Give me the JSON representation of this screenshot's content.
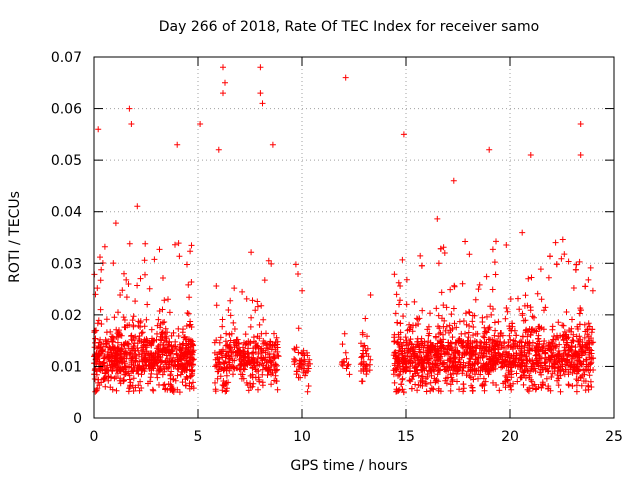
{
  "chart_data": {
    "type": "scatter",
    "title": "Day 266 of 2018, Rate Of TEC Index for receiver samo",
    "xlabel": "GPS time / hours",
    "ylabel": "ROTI / TECUs",
    "xlim": [
      0,
      25
    ],
    "ylim": [
      0,
      0.07
    ],
    "xticks": [
      0,
      5,
      10,
      15,
      20,
      25
    ],
    "xtick_labels": [
      "0",
      "5",
      "10",
      "15",
      "20",
      "25"
    ],
    "yticks": [
      0,
      0.01,
      0.02,
      0.03,
      0.04,
      0.05,
      0.06,
      0.07
    ],
    "ytick_labels": [
      "0",
      "0.01",
      "0.02",
      "0.03",
      "0.04",
      "0.05",
      "0.06",
      "0.07"
    ],
    "grid": true,
    "marker": "+",
    "color": "#ff0000",
    "activity_segments": [
      {
        "start": 0.0,
        "end": 4.8,
        "density": 1.0,
        "spread": 0.012
      },
      {
        "start": 5.8,
        "end": 8.9,
        "density": 0.7,
        "spread": 0.011
      },
      {
        "start": 9.6,
        "end": 10.4,
        "density": 0.4,
        "spread": 0.006
      },
      {
        "start": 11.9,
        "end": 12.3,
        "density": 0.2,
        "spread": 0.006
      },
      {
        "start": 12.8,
        "end": 13.3,
        "density": 0.45,
        "spread": 0.009
      },
      {
        "start": 14.4,
        "end": 24.0,
        "density": 1.0,
        "spread": 0.013
      }
    ],
    "outliers": [
      {
        "x": 0.2,
        "y": 0.056
      },
      {
        "x": 1.7,
        "y": 0.06
      },
      {
        "x": 1.8,
        "y": 0.057
      },
      {
        "x": 6.2,
        "y": 0.068
      },
      {
        "x": 6.3,
        "y": 0.065
      },
      {
        "x": 6.2,
        "y": 0.063
      },
      {
        "x": 8.0,
        "y": 0.068
      },
      {
        "x": 8.0,
        "y": 0.063
      },
      {
        "x": 8.1,
        "y": 0.061
      },
      {
        "x": 12.1,
        "y": 0.066
      },
      {
        "x": 5.1,
        "y": 0.057
      },
      {
        "x": 14.9,
        "y": 0.055
      },
      {
        "x": 19.0,
        "y": 0.052
      },
      {
        "x": 23.4,
        "y": 0.057
      },
      {
        "x": 23.4,
        "y": 0.051
      },
      {
        "x": 21.0,
        "y": 0.051
      },
      {
        "x": 17.3,
        "y": 0.046
      },
      {
        "x": 8.6,
        "y": 0.053
      },
      {
        "x": 4.0,
        "y": 0.053
      },
      {
        "x": 6.0,
        "y": 0.052
      }
    ]
  }
}
